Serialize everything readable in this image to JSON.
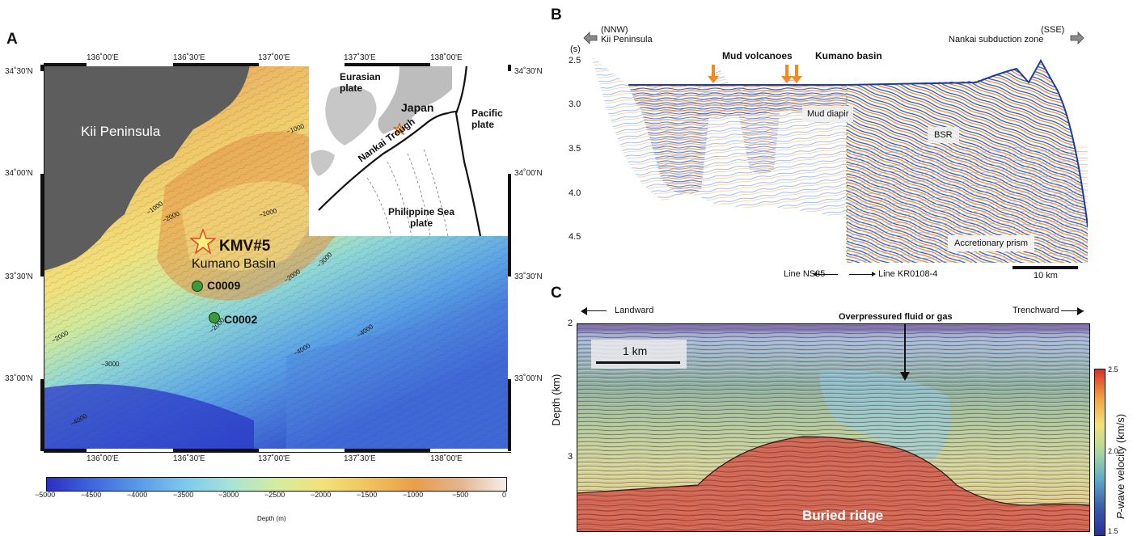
{
  "panelA": {
    "letter": "A",
    "lon_labels": [
      "136˚00'E",
      "136˚30'E",
      "137˚00'E",
      "137˚30'E",
      "138˚00'E"
    ],
    "lat_labels": [
      "34˚30'N",
      "34˚00'N",
      "33˚30'N",
      "33˚00'N"
    ],
    "land_label": "Kii Peninsula",
    "site_main": "KMV#5",
    "basin_label": "Kumano Basin",
    "site_c0009": "C0009",
    "site_c0002": "C0002",
    "contour_labels": [
      "−1000",
      "−1000",
      "−2000",
      "−2000",
      "−2000",
      "−3000",
      "−2000",
      "−2000",
      "−3000",
      "−4000",
      "−4000",
      "−4000"
    ],
    "inset": {
      "eurasian": "Eurasian\nplate",
      "japan": "Japan",
      "pacific": "Pacific\nplate",
      "trough": "Nankai Trough",
      "philippine": "Philippine Sea\nplate"
    },
    "colorbar": {
      "ticks": [
        "−5000",
        "−4500",
        "−4000",
        "−3500",
        "−3000",
        "−2500",
        "−2000",
        "−1500",
        "−1000",
        "−500",
        "0"
      ],
      "label": "Depth (m)",
      "colors": [
        "#2b2fc4",
        "#3f67e0",
        "#5a9ae8",
        "#7dc8ef",
        "#a8e3d8",
        "#d4ec9e",
        "#f2e27a",
        "#f1c35c",
        "#e89e4a",
        "#e4b48f",
        "#f6eee8"
      ]
    }
  },
  "panelB": {
    "letter": "B",
    "nnw": "(NNW)",
    "kii": "Kii Peninsula",
    "sse": "(SSE)",
    "nankai": "Nankai subduction zone",
    "y_unit": "(s)",
    "y_ticks": [
      "2.5",
      "3.0",
      "3.5",
      "4.0",
      "4.5"
    ],
    "mud_volcanoes": "Mud volcanoes",
    "kumano_basin": "Kumano basin",
    "mud_diapir": "Mud diapir",
    "bsr": "BSR",
    "accretionary": "Accretionary prism",
    "line_left": "Line NS35",
    "line_right": "Line KR0108-4",
    "scale": "10 km"
  },
  "panelC": {
    "letter": "C",
    "landward": "Landward",
    "trenchward": "Trenchward",
    "overpressured": "Overpressured fluid or gas",
    "scale": "1 km",
    "y_label": "Depth (km)",
    "y_ticks": [
      "2",
      "3"
    ],
    "buried_ridge": "Buried ridge",
    "cbar_label_italic": "P",
    "cbar_label_rest": "-wave velocity (km/s)",
    "cbar_ticks": [
      "2.5",
      "2.0",
      "1.5"
    ]
  }
}
